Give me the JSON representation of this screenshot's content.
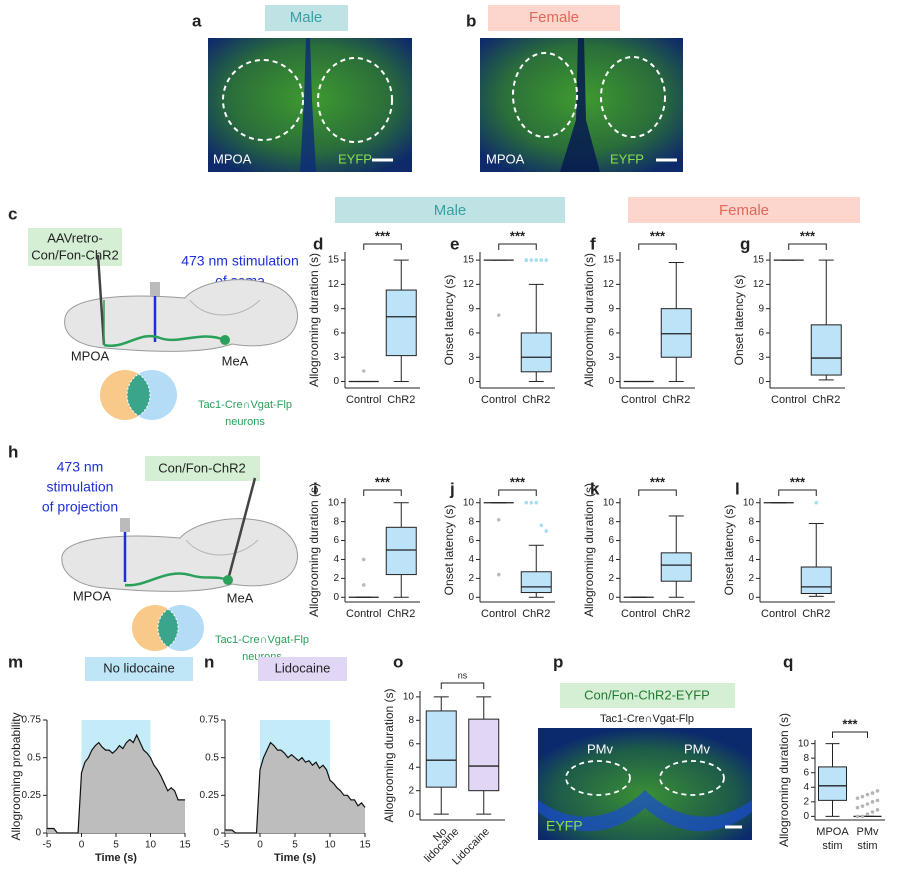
{
  "row_headers": [
    "Male",
    "Female"
  ],
  "micrographs": [
    {
      "label": "a",
      "title": "Male",
      "region": "MPOA",
      "marker": "EYFP"
    },
    {
      "label": "b",
      "title": "Female",
      "region": "MPOA",
      "marker": "EYFP"
    }
  ],
  "schematics": [
    {
      "label": "c",
      "virus": [
        "AAVretro-",
        "Con/Fon-ChR2"
      ],
      "stimulation": [
        "473 nm stimulation",
        "of soma"
      ],
      "regions": [
        "MPOA",
        "MeA"
      ],
      "cells": [
        "Tac1-Cre∩Vgat-Flp",
        "neurons"
      ]
    },
    {
      "label": "h",
      "virus": [
        "Con/Fon-ChR2"
      ],
      "stimulation": [
        "473 nm",
        "stimulation",
        "of projection"
      ],
      "regions": [
        "MPOA",
        "MeA"
      ],
      "cells": [
        "Tac1-Cre∩Vgat-Flp",
        "neurons"
      ]
    }
  ],
  "histology": {
    "label": "p",
    "virus": "Con/Fon-ChR2-EYFP",
    "line": "Tac1-Cre∩Vgat-Flp",
    "regions": [
      "PMv",
      "PMv"
    ],
    "marker": "EYFP"
  },
  "chart_data": [
    {
      "type": "box",
      "label": "d",
      "ylabel": "Allogrooming duration (s)",
      "ylim": [
        -0.8,
        16
      ],
      "yticks": [
        0,
        3,
        6,
        9,
        12,
        15
      ],
      "categories": [
        "Control",
        "ChR2"
      ],
      "significance": "***",
      "boxes": [
        {
          "min": 0,
          "q1": 0,
          "median": 0,
          "q3": 0,
          "max": 0,
          "color": "#bde3f8",
          "outliers": [
            1.3
          ],
          "outlier_color": "#bbbbbb"
        },
        {
          "min": 0,
          "q1": 3.2,
          "median": 8,
          "q3": 11.3,
          "max": 15,
          "color": "#bde3f8",
          "outliers": [],
          "outlier_color": "#a9ddf0"
        }
      ]
    },
    {
      "type": "box",
      "label": "e",
      "ylabel": "Onset latency (s)",
      "ylim": [
        -0.8,
        16
      ],
      "yticks": [
        0,
        3,
        6,
        9,
        12,
        15
      ],
      "categories": [
        "Control",
        "ChR2"
      ],
      "significance": "***",
      "boxes": [
        {
          "min": 15,
          "q1": 15,
          "median": 15,
          "q3": 15,
          "max": 15,
          "color": "#bde3f8",
          "outliers": [
            8.2
          ],
          "outlier_color": "#bbbbbb"
        },
        {
          "min": 0,
          "q1": 1.2,
          "median": 3,
          "q3": 6,
          "max": 12,
          "color": "#bde3f8",
          "outliers": [
            15,
            15,
            15,
            15,
            15,
            15
          ],
          "outlier_color": "#a9ddf0"
        }
      ]
    },
    {
      "type": "box",
      "label": "f",
      "ylabel": "Allogrooming duration (s)",
      "ylim": [
        -0.8,
        16
      ],
      "yticks": [
        0,
        3,
        6,
        9,
        12,
        15
      ],
      "categories": [
        "Control",
        "ChR2"
      ],
      "significance": "***",
      "boxes": [
        {
          "min": 0,
          "q1": 0,
          "median": 0,
          "q3": 0,
          "max": 0,
          "color": "#bde3f8",
          "outliers": [],
          "outlier_color": "#bbbbbb"
        },
        {
          "min": 0,
          "q1": 3,
          "median": 5.9,
          "q3": 9,
          "max": 14.7,
          "color": "#bde3f8",
          "outliers": [],
          "outlier_color": "#a9ddf0"
        }
      ]
    },
    {
      "type": "box",
      "label": "g",
      "ylabel": "Onset latency (s)",
      "ylim": [
        -0.8,
        16
      ],
      "yticks": [
        0,
        3,
        6,
        9,
        12,
        15
      ],
      "categories": [
        "Control",
        "ChR2"
      ],
      "significance": "***",
      "boxes": [
        {
          "min": 15,
          "q1": 15,
          "median": 15,
          "q3": 15,
          "max": 15,
          "color": "#bde3f8",
          "outliers": [],
          "outlier_color": "#bbbbbb"
        },
        {
          "min": 0.2,
          "q1": 0.8,
          "median": 2.9,
          "q3": 7,
          "max": 15,
          "color": "#bde3f8",
          "outliers": [],
          "outlier_color": "#a9ddf0"
        }
      ]
    },
    {
      "type": "box",
      "label": "i",
      "ylabel": "Allogrooming duration (s)",
      "ylim": [
        -0.5,
        10.5
      ],
      "yticks": [
        0,
        2,
        4,
        6,
        8,
        10
      ],
      "categories": [
        "Control",
        "ChR2"
      ],
      "significance": "***",
      "boxes": [
        {
          "min": 0,
          "q1": 0,
          "median": 0,
          "q3": 0,
          "max": 0,
          "color": "#bde3f8",
          "outliers": [
            4,
            1.3
          ],
          "outlier_color": "#bbbbbb"
        },
        {
          "min": 0,
          "q1": 2.4,
          "median": 5,
          "q3": 7.4,
          "max": 10,
          "color": "#bde3f8",
          "outliers": [],
          "outlier_color": "#a9ddf0"
        }
      ]
    },
    {
      "type": "box",
      "label": "j",
      "ylabel": "Onset latency (s)",
      "ylim": [
        -0.5,
        10.5
      ],
      "yticks": [
        0,
        2,
        4,
        6,
        8,
        10
      ],
      "categories": [
        "Control",
        "ChR2"
      ],
      "significance": "***",
      "boxes": [
        {
          "min": 10,
          "q1": 10,
          "median": 10,
          "q3": 10,
          "max": 10,
          "color": "#bde3f8",
          "outliers": [
            8.2,
            2.4
          ],
          "outlier_color": "#bbbbbb"
        },
        {
          "min": 0,
          "q1": 0.5,
          "median": 1.1,
          "q3": 2.7,
          "max": 5.5,
          "color": "#bde3f8",
          "outliers": [
            10,
            10,
            10,
            7.6,
            7
          ],
          "outlier_color": "#a9ddf0"
        }
      ]
    },
    {
      "type": "box",
      "label": "k",
      "ylabel": "Allogrooming duration (s)",
      "ylim": [
        -0.5,
        10.5
      ],
      "yticks": [
        0,
        2,
        4,
        6,
        8,
        10
      ],
      "categories": [
        "Control",
        "ChR2"
      ],
      "significance": "***",
      "boxes": [
        {
          "min": 0,
          "q1": 0,
          "median": 0,
          "q3": 0,
          "max": 0,
          "color": "#bde3f8",
          "outliers": [],
          "outlier_color": "#bbbbbb"
        },
        {
          "min": 0,
          "q1": 1.7,
          "median": 3.4,
          "q3": 4.7,
          "max": 8.6,
          "color": "#bde3f8",
          "outliers": [],
          "outlier_color": "#a9ddf0"
        }
      ]
    },
    {
      "type": "box",
      "label": "l",
      "ylabel": "Onset latency (s)",
      "ylim": [
        -0.5,
        10.5
      ],
      "yticks": [
        0,
        2,
        4,
        6,
        8,
        10
      ],
      "categories": [
        "Control",
        "ChR2"
      ],
      "significance": "***",
      "boxes": [
        {
          "min": 10,
          "q1": 10,
          "median": 10,
          "q3": 10,
          "max": 10,
          "color": "#bde3f8",
          "outliers": [],
          "outlier_color": "#bbbbbb"
        },
        {
          "min": 0.1,
          "q1": 0.4,
          "median": 1.1,
          "q3": 3.2,
          "max": 7.8,
          "color": "#bde3f8",
          "outliers": [
            10
          ],
          "outlier_color": "#a9ddf0"
        }
      ]
    },
    {
      "type": "area",
      "label": "m",
      "title": "No lidocaine",
      "title_color": "#bfe6f7",
      "ylabel": "Allogrooming probability",
      "xlabel": "Time (s)",
      "xlim": [
        -5,
        15
      ],
      "ylim": [
        0,
        0.75
      ],
      "xticks": [
        -5,
        0,
        5,
        10,
        15
      ],
      "yticks": [
        0,
        0.25,
        0.5,
        0.75
      ],
      "shade": [
        0,
        10
      ],
      "shade_color": "#c3ecf8",
      "color": "#bdbdbd",
      "x": [
        -5,
        -4.5,
        -4,
        -3.5,
        -3,
        -2.5,
        -2,
        -1.5,
        -1,
        -0.5,
        0,
        0.5,
        1,
        1.5,
        2,
        2.5,
        3,
        3.5,
        4,
        4.5,
        5,
        5.5,
        6,
        6.5,
        7,
        7.5,
        8,
        8.5,
        9,
        9.5,
        10,
        10.5,
        11,
        11.5,
        12,
        12.5,
        13,
        13.5,
        14,
        14.5,
        15
      ],
      "values": [
        0.03,
        0.03,
        0.03,
        0,
        0,
        0,
        0,
        0,
        0,
        0,
        0.4,
        0.47,
        0.5,
        0.55,
        0.58,
        0.6,
        0.57,
        0.55,
        0.55,
        0.53,
        0.55,
        0.58,
        0.56,
        0.6,
        0.62,
        0.6,
        0.65,
        0.6,
        0.55,
        0.53,
        0.5,
        0.45,
        0.42,
        0.38,
        0.33,
        0.28,
        0.3,
        0.28,
        0.22,
        0.22,
        0.22
      ]
    },
    {
      "type": "area",
      "label": "n",
      "title": "Lidocaine",
      "title_color": "#e2d6f5",
      "xlabel": "Time (s)",
      "xlim": [
        -5,
        15
      ],
      "ylim": [
        0,
        0.75
      ],
      "xticks": [
        -5,
        0,
        5,
        10,
        15
      ],
      "yticks": [
        0,
        0.25,
        0.5,
        0.75
      ],
      "shade": [
        0,
        10
      ],
      "shade_color": "#c3ecf8",
      "color": "#bdbdbd",
      "x": [
        -5,
        -4.5,
        -4,
        -3.5,
        -3,
        -2.5,
        -2,
        -1.5,
        -1,
        -0.5,
        0,
        0.5,
        1,
        1.5,
        2,
        2.5,
        3,
        3.5,
        4,
        4.5,
        5,
        5.5,
        6,
        6.5,
        7,
        7.5,
        8,
        8.5,
        9,
        9.5,
        10,
        10.5,
        11,
        11.5,
        12,
        12.5,
        13,
        13.5,
        14,
        14.5,
        15
      ],
      "values": [
        0.02,
        0.02,
        0.02,
        0,
        0,
        0,
        0,
        0,
        0,
        0,
        0.42,
        0.5,
        0.55,
        0.6,
        0.58,
        0.55,
        0.55,
        0.53,
        0.5,
        0.52,
        0.5,
        0.48,
        0.5,
        0.47,
        0.48,
        0.45,
        0.47,
        0.43,
        0.45,
        0.42,
        0.35,
        0.33,
        0.3,
        0.28,
        0.25,
        0.25,
        0.22,
        0.22,
        0.18,
        0.2,
        0.17
      ]
    },
    {
      "type": "box",
      "label": "o",
      "ylabel": "Allogrooming duration (s)",
      "ylim": [
        -0.5,
        10.5
      ],
      "yticks": [
        0,
        2,
        4,
        6,
        8,
        10
      ],
      "categories": [
        [
          "No",
          "lidocaine"
        ],
        [
          "Lidocaine"
        ]
      ],
      "significance": "ns",
      "rotate": true,
      "boxes": [
        {
          "min": 0,
          "q1": 2.3,
          "median": 4.6,
          "q3": 8.8,
          "max": 10,
          "color": "#bde3f8",
          "outliers": [],
          "outlier_color": "#bbbbbb"
        },
        {
          "min": 0,
          "q1": 2,
          "median": 4.1,
          "q3": 8.1,
          "max": 10,
          "color": "#e2d6f5",
          "outliers": [],
          "outlier_color": "#bbbbbb"
        }
      ]
    },
    {
      "type": "box",
      "label": "q",
      "ylabel": "Allogrooming duration (s)",
      "ylim": [
        -0.5,
        10.5
      ],
      "yticks": [
        0,
        2,
        4,
        6,
        8,
        10
      ],
      "categories": [
        [
          "MPOA",
          "stim"
        ],
        [
          "PMv",
          "stim"
        ]
      ],
      "significance": "***",
      "boxes": [
        {
          "min": 0,
          "q1": 2.2,
          "median": 4.2,
          "q3": 6.8,
          "max": 10,
          "color": "#bde3f8",
          "outliers": [],
          "outlier_color": "#bbbbbb"
        },
        {
          "min": 0,
          "q1": 0,
          "median": 0,
          "q3": 0,
          "max": 0,
          "color": "#ffffff",
          "outliers": [
            0,
            0,
            0.3,
            0.6,
            0.9,
            1.2,
            1.4,
            1.7,
            2,
            2.2,
            2.5,
            2.7,
            3,
            3.2,
            3.5
          ],
          "outlier_color": "#b5b5b5"
        }
      ]
    }
  ]
}
